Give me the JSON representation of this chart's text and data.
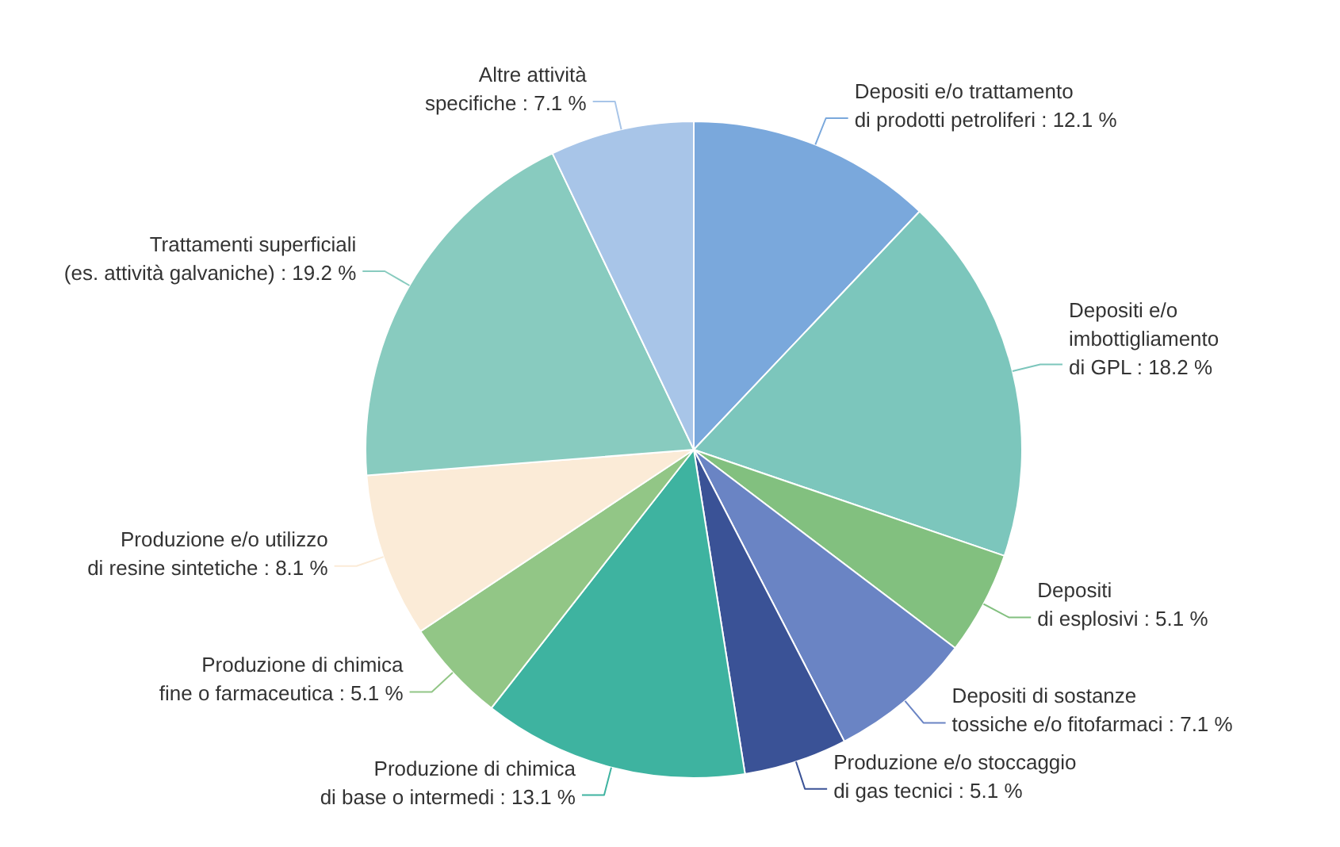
{
  "chart_data": {
    "type": "pie",
    "categories": [
      "Depositi e/o trattamento\ndi prodotti petroliferi",
      "Depositi e/o\nimbottigliamento\ndi GPL",
      "Depositi\ndi esplosivi",
      "Depositi di sostanze\ntossiche e/o fitofarmaci",
      "Produzione e/o stoccaggio\ndi gas tecnici",
      "Produzione di chimica\ndi base o intermedi",
      "Produzione di chimica\nfine o farmaceutica",
      "Produzione e/o utilizzo\ndi resine sintetiche",
      "Trattamenti superficiali\n(es. attività galvaniche)",
      "Altre attività\nspecifiche"
    ],
    "values": [
      12.1,
      18.2,
      5.1,
      7.1,
      5.1,
      13.1,
      5.1,
      8.1,
      19.2,
      7.1
    ],
    "value_labels": [
      "12.1 %",
      "18.2 %",
      "5.1 %",
      "7.1 %",
      "5.1 %",
      "13.1 %",
      "5.1 %",
      "8.1 %",
      "19.2 %",
      "7.1 %"
    ],
    "colors": [
      "#7aa8dc",
      "#7cc6bc",
      "#82c07f",
      "#6a84c4",
      "#3a5296",
      "#3eb3a0",
      "#92c686",
      "#fbebd7",
      "#88cbbf",
      "#a8c5e8"
    ]
  }
}
